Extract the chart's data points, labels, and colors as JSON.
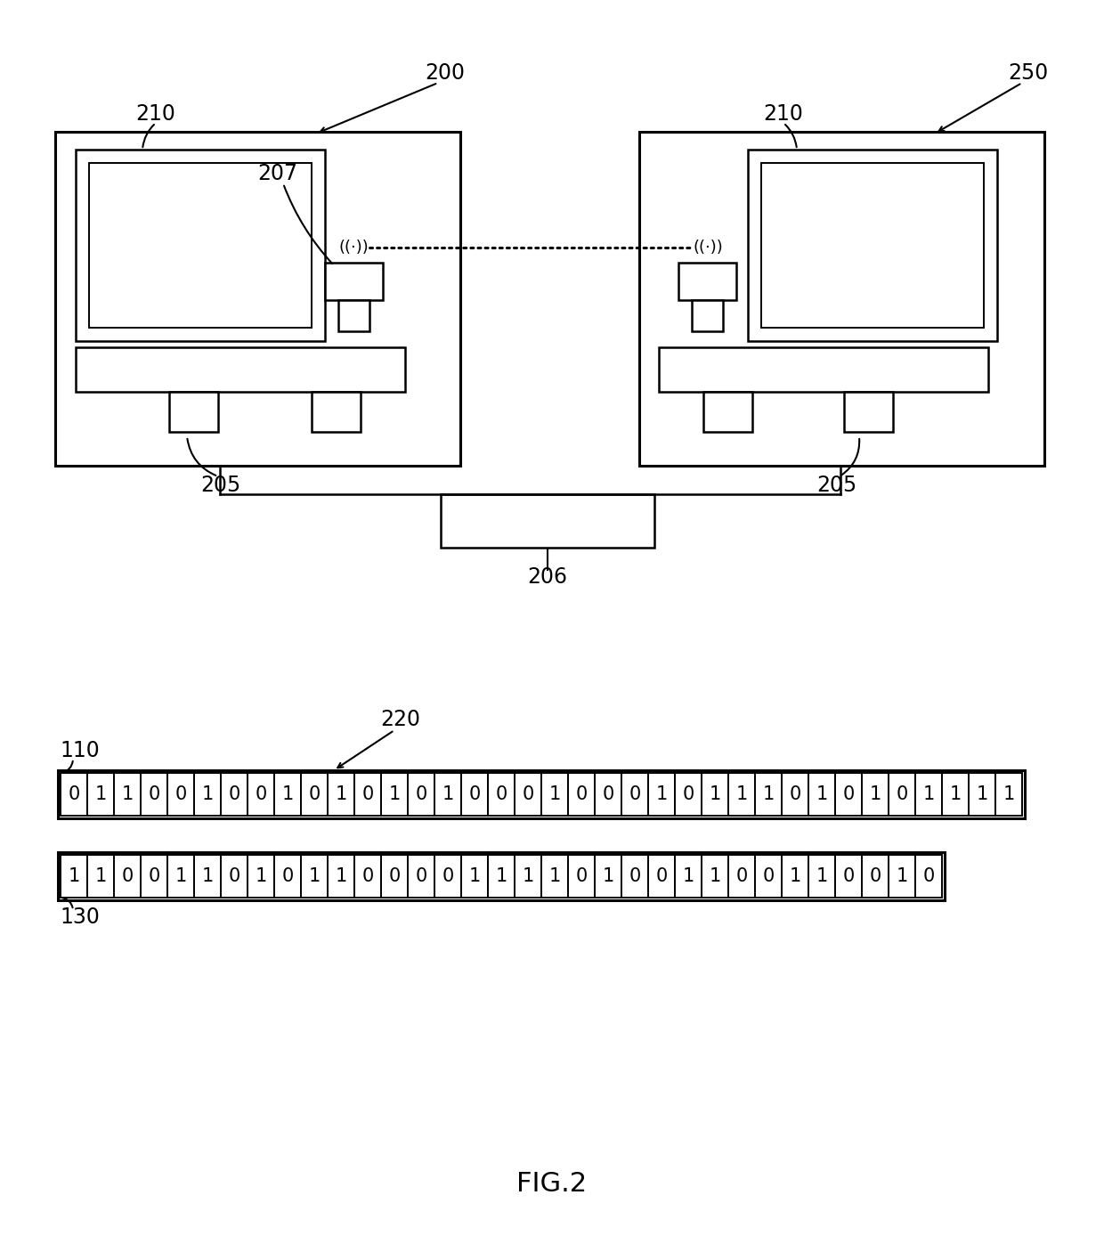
{
  "bg_color": "#ffffff",
  "fig_caption": "FIG.2",
  "row1_bits": [
    "0",
    "1",
    "1",
    "0",
    "0",
    "1",
    "0",
    "0",
    "1",
    "0",
    "1",
    "0",
    "1",
    "0",
    "1",
    "0",
    "0",
    "0",
    "1",
    "0",
    "0",
    "0",
    "1",
    "0",
    "1",
    "1",
    "1",
    "0",
    "1",
    "0",
    "1",
    "0",
    "1",
    "1",
    "1",
    "1"
  ],
  "row2_bits": [
    "1",
    "1",
    "0",
    "0",
    "1",
    "1",
    "0",
    "1",
    "0",
    "1",
    "1",
    "0",
    "0",
    "0",
    "0",
    "1",
    "1",
    "1",
    "1",
    "0",
    "1",
    "0",
    "0",
    "1",
    "1",
    "0",
    "0",
    "1",
    "1",
    "0",
    "0",
    "1",
    "0"
  ],
  "label_110": "110",
  "label_130": "130",
  "label_220": "220",
  "label_200": "200",
  "label_250": "250",
  "label_210a": "210",
  "label_210b": "210",
  "label_205a": "205",
  "label_205b": "205",
  "label_206": "206",
  "label_207": "207"
}
